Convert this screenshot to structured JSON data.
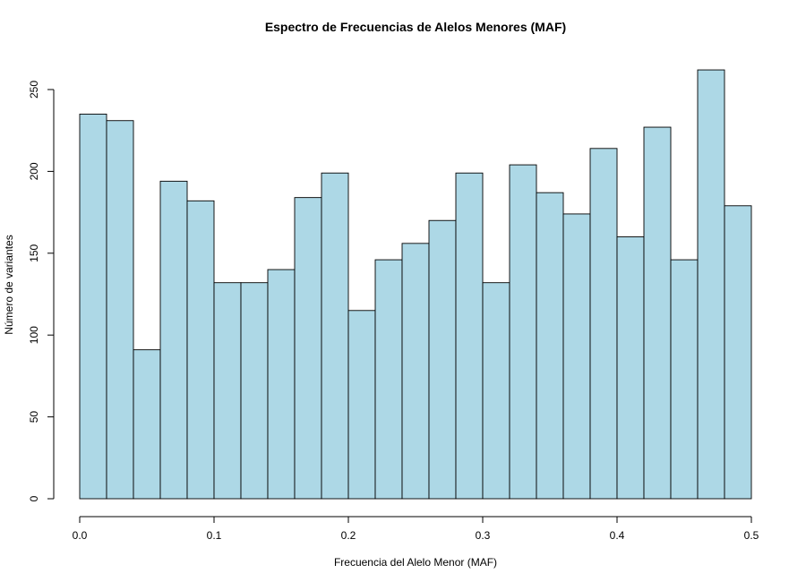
{
  "chart_data": {
    "type": "bar",
    "title": "Espectro de Frecuencias de Alelos Menores (MAF)",
    "xlabel": "Frecuencia del Alelo Menor (MAF)",
    "ylabel": "Número de variantes",
    "bar_color": "#add8e6",
    "edge_color": "#000000",
    "xlim": [
      0,
      0.5
    ],
    "ylim": [
      0,
      250
    ],
    "xticks": [
      "0.0",
      "0.1",
      "0.2",
      "0.3",
      "0.4",
      "0.5"
    ],
    "xtick_values": [
      0,
      0.1,
      0.2,
      0.3,
      0.4,
      0.5
    ],
    "yticks": [
      "0",
      "50",
      "100",
      "150",
      "200",
      "250"
    ],
    "ytick_values": [
      0,
      50,
      100,
      150,
      200,
      250
    ],
    "bin_edges": [
      0.0,
      0.02,
      0.04,
      0.06,
      0.08,
      0.1,
      0.12,
      0.14,
      0.16,
      0.18,
      0.2,
      0.22,
      0.24,
      0.26,
      0.28,
      0.3,
      0.32,
      0.34,
      0.36,
      0.38,
      0.4,
      0.42,
      0.44,
      0.46,
      0.48,
      0.5
    ],
    "values": [
      235,
      231,
      91,
      194,
      182,
      132,
      132,
      140,
      184,
      199,
      115,
      146,
      156,
      170,
      199,
      132,
      204,
      187,
      174,
      214,
      160,
      227,
      146,
      262,
      179
    ],
    "grid": false,
    "legend": "none"
  }
}
